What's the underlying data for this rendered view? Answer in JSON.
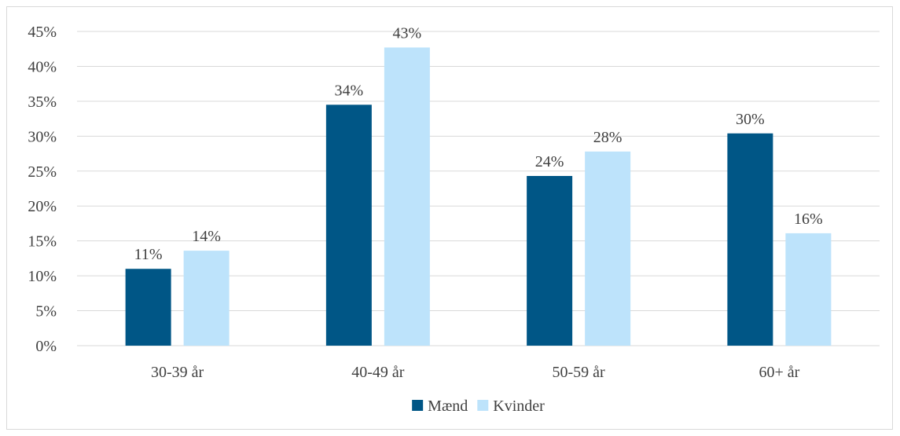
{
  "chart_data": {
    "type": "bar",
    "title": "",
    "xlabel": "",
    "ylabel": "",
    "categories": [
      "30-39 år",
      "40-49 år",
      "50-59 år",
      "60+ år"
    ],
    "series": [
      {
        "name": "Mænd",
        "values": [
          0.11,
          0.345,
          0.243,
          0.304
        ],
        "labels": [
          "11%",
          "34%",
          "24%",
          "30%"
        ],
        "color": "#005686"
      },
      {
        "name": "Kvinder",
        "values": [
          0.136,
          0.427,
          0.278,
          0.161
        ],
        "labels": [
          "14%",
          "43%",
          "28%",
          "16%"
        ],
        "color": "#bde3fb"
      }
    ],
    "ylim": [
      0,
      0.45
    ],
    "yticks": [
      0,
      0.05,
      0.1,
      0.15,
      0.2,
      0.25,
      0.3,
      0.35,
      0.4,
      0.45
    ],
    "ytick_labels": [
      "0%",
      "5%",
      "10%",
      "15%",
      "20%",
      "25%",
      "30%",
      "35%",
      "40%",
      "45%"
    ],
    "grid": true,
    "legend": "bottom",
    "gridline_color": "#d9d9d9"
  }
}
